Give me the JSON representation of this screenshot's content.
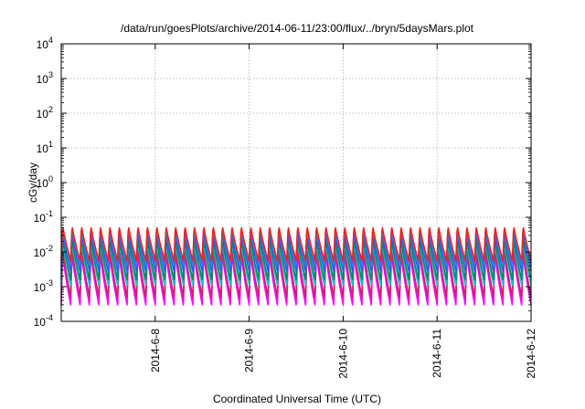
{
  "chart_data": {
    "type": "line",
    "title": "/data/run/goesPlots/archive/2014-06-11/23:00/flux/../bryn/5daysMars.plot",
    "xlabel": "Coordinated Universal Time (UTC)",
    "ylabel": "cGy/day",
    "x_tick_labels": [
      "2014-6-8",
      "2014-6-9",
      "2014-6-10",
      "2014-6-11",
      "2014-6-12"
    ],
    "x_tick_days": [
      7,
      8,
      9,
      10,
      11
    ],
    "xlim_days": [
      6.0,
      11.0
    ],
    "y_scale": "log",
    "ylim": [
      0.0001,
      10000
    ],
    "y_ticks": [
      {
        "base": "10",
        "exp": "-4",
        "value": 0.0001
      },
      {
        "base": "10",
        "exp": "-3",
        "value": 0.001
      },
      {
        "base": "10",
        "exp": "-2",
        "value": 0.01
      },
      {
        "base": "10",
        "exp": "-1",
        "value": 0.1
      },
      {
        "base": "10",
        "exp": "0",
        "value": 1
      },
      {
        "base": "10",
        "exp": "1",
        "value": 10
      },
      {
        "base": "10",
        "exp": "2",
        "value": 100
      },
      {
        "base": "10",
        "exp": "3",
        "value": 1000
      },
      {
        "base": "10",
        "exp": "4",
        "value": 10000
      }
    ],
    "grid": true,
    "cycles_per_day": 10,
    "series": [
      {
        "color": "#ff00ff",
        "peak": 0.009,
        "trough": 0.0003
      },
      {
        "color": "#cc2266",
        "peak": 0.013,
        "trough": 0.0005
      },
      {
        "color": "#00cccc",
        "peak": 0.02,
        "trough": 0.0011
      },
      {
        "color": "#008866",
        "peak": 0.025,
        "trough": 0.0016
      },
      {
        "color": "#3355ff",
        "peak": 0.038,
        "trough": 0.0028
      },
      {
        "color": "#2288ee",
        "peak": 0.05,
        "trough": 0.004
      },
      {
        "color": "#ee2222",
        "peak": 0.058,
        "trough": 0.0055
      }
    ]
  }
}
